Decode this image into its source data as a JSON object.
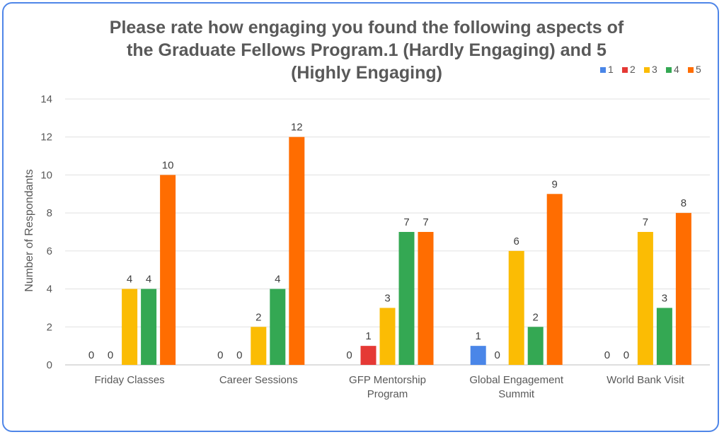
{
  "chart_data": {
    "type": "bar",
    "title_lines": [
      "Please rate how engaging you found the following aspects of",
      "the Graduate Fellows Program.1 (Hardly Engaging) and 5",
      "(Highly Engaging)"
    ],
    "ylabel": "Number of Respondants",
    "xlabel": "",
    "ylim": [
      0,
      14
    ],
    "yticks": [
      0,
      2,
      4,
      6,
      8,
      10,
      12,
      14
    ],
    "grid": true,
    "legend_position": "top-right",
    "categories": [
      [
        "Friday Classes"
      ],
      [
        "Career Sessions"
      ],
      [
        "GFP Mentorship",
        "Program"
      ],
      [
        "Global Engagement",
        "Summit"
      ],
      [
        "World Bank Visit"
      ]
    ],
    "series": [
      {
        "name": "1",
        "color": "#4a86e8",
        "values": [
          0,
          0,
          0,
          1,
          0
        ]
      },
      {
        "name": "2",
        "color": "#e53935",
        "values": [
          0,
          0,
          1,
          0,
          0
        ]
      },
      {
        "name": "3",
        "color": "#fbbc04",
        "values": [
          4,
          2,
          3,
          6,
          7
        ]
      },
      {
        "name": "4",
        "color": "#34a853",
        "values": [
          4,
          4,
          7,
          2,
          3
        ]
      },
      {
        "name": "5",
        "color": "#ff6d01",
        "values": [
          10,
          12,
          7,
          9,
          8
        ]
      }
    ]
  }
}
